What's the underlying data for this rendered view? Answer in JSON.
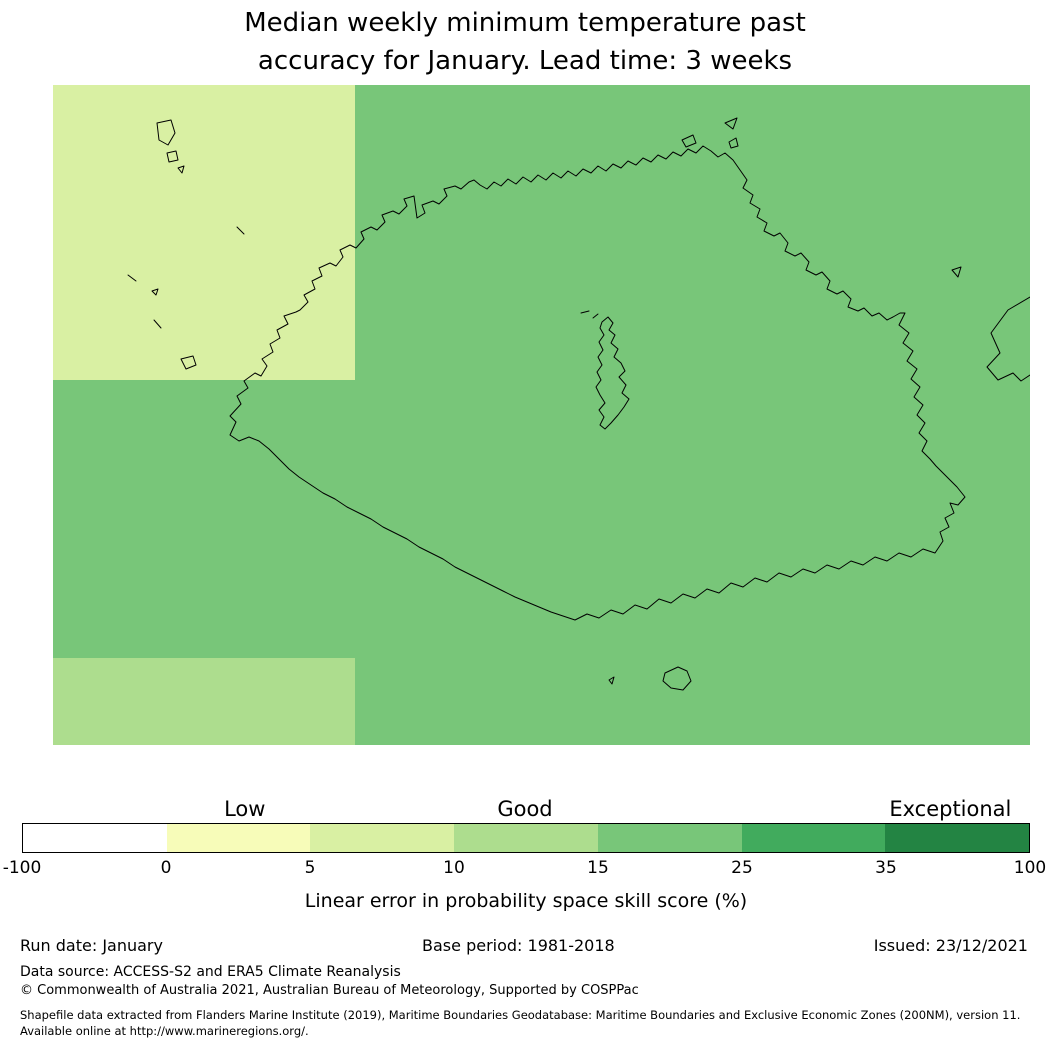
{
  "title": {
    "line1": "Median weekly minimum temperature past",
    "line2": "accuracy for January. Lead time: 3 weeks"
  },
  "colorbar": {
    "categories": [
      {
        "label": "Low",
        "position_pct": 22.1
      },
      {
        "label": "Good",
        "position_pct": 49.9
      },
      {
        "label": "Exceptional",
        "position_pct": 92.1
      }
    ],
    "ticks": [
      "-100",
      "0",
      "5",
      "10",
      "15",
      "25",
      "35",
      "100"
    ],
    "segment_colors": [
      "#ffffff",
      "#f7fcb9",
      "#d9f0a3",
      "#addd8e",
      "#78c679",
      "#41ab5d",
      "#238443"
    ],
    "xlabel": "Linear error in probability space skill score (%)"
  },
  "footer": {
    "run_date": "Run date: January",
    "base_period": "Base period: 1981-2018",
    "issued": "Issued: 23/12/2021",
    "data_source": "Data source: ACCESS-S2 and ERA5 Climate Reanalysis",
    "copyright": "© Commonwealth of Australia 2021, Australian Bureau of Meteorology, Supported by COSPPac",
    "shapefile": "Shapefile data extracted from Flanders Marine Institute (2019), Maritime Boundaries Geodatabase: Maritime Boundaries and Exclusive Economic Zones (200NM), version 11. Available online at http://www.marineregions.org/."
  },
  "chart_data": {
    "type": "heatmap",
    "title": "Median weekly minimum temperature past accuracy for January. Lead time: 3 weeks",
    "xlabel": "Linear error in probability space skill score (%)",
    "colorbar_ticks": [
      -100,
      0,
      5,
      10,
      15,
      25,
      35,
      100
    ],
    "colorbar_colors": [
      "#ffffff",
      "#f7fcb9",
      "#d9f0a3",
      "#addd8e",
      "#78c679",
      "#41ab5d",
      "#238443"
    ],
    "skill_categories": [
      "Low",
      "Good",
      "Exceptional"
    ],
    "legend_on": true,
    "grid_on": false,
    "map_regions": [
      {
        "name": "northwest-block",
        "skill_score_range": "5-10",
        "color": "#d9f0a3"
      },
      {
        "name": "southwest-block",
        "skill_score_range": "10-15",
        "color": "#addd8e"
      },
      {
        "name": "main-area",
        "skill_score_range": "15-25",
        "color": "#78c679"
      }
    ],
    "map_features": [
      "eez-maritime-boundary",
      "main-island",
      "outlying-islands"
    ]
  }
}
